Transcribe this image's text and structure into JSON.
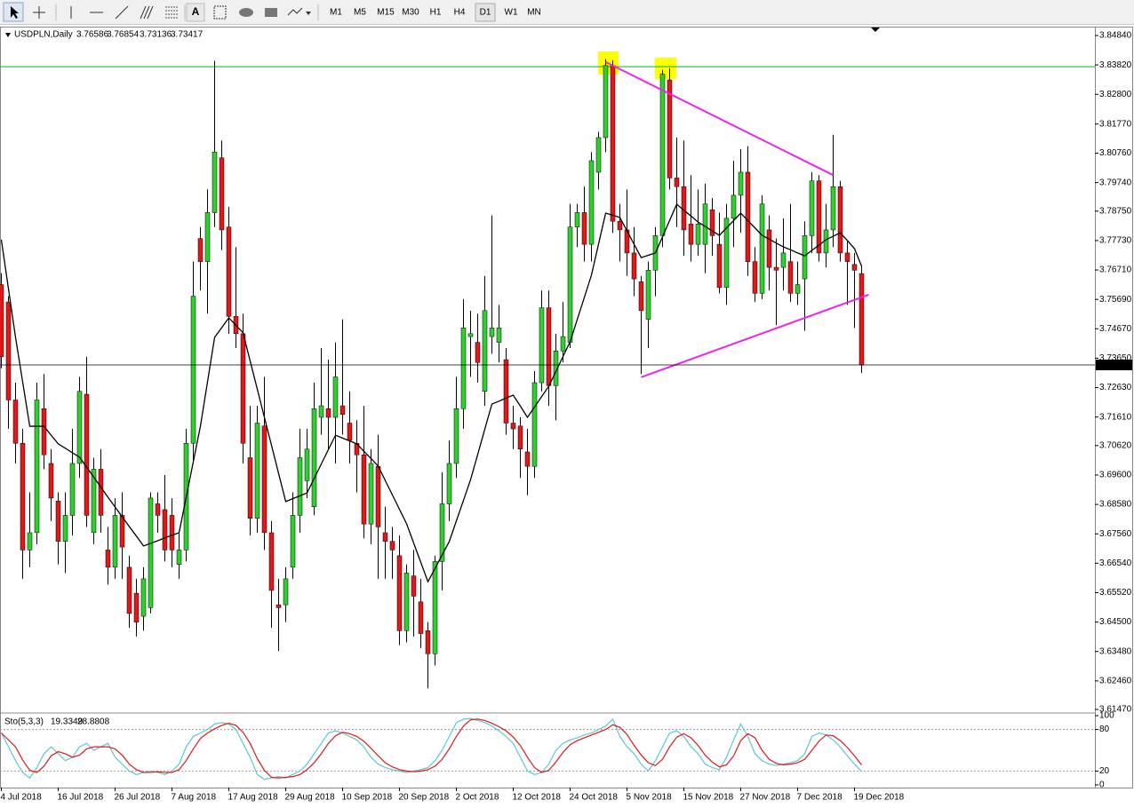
{
  "toolbar": {
    "text_tool": "A",
    "timeframes": [
      "M1",
      "M5",
      "M15",
      "M30",
      "H1",
      "H4",
      "D1",
      "W1",
      "MN"
    ],
    "active": 6
  },
  "chart_data": [
    {
      "type": "candlestick",
      "title": "USDPLN,Daily",
      "categories": [
        "4 Jul 2018",
        null,
        null,
        null,
        null,
        null,
        null,
        null,
        "16 Jul 2018",
        null,
        null,
        null,
        null,
        null,
        null,
        null,
        "26 Jul 2018",
        null,
        null,
        null,
        null,
        null,
        null,
        null,
        "7 Aug 2018",
        null,
        null,
        null,
        null,
        null,
        null,
        null,
        "17 Aug 2018",
        null,
        null,
        null,
        null,
        null,
        null,
        null,
        "29 Aug 2018",
        null,
        null,
        null,
        null,
        null,
        null,
        null,
        "10 Sep 2018",
        null,
        null,
        null,
        null,
        null,
        null,
        null,
        "20 Sep 2018",
        null,
        null,
        null,
        null,
        null,
        null,
        null,
        "2 Oct 2018",
        null,
        null,
        null,
        null,
        null,
        null,
        null,
        "12 Oct 2018",
        null,
        null,
        null,
        null,
        null,
        null,
        null,
        "24 Oct 2018",
        null,
        null,
        null,
        null,
        null,
        null,
        null,
        "5 Nov 2018",
        null,
        null,
        null,
        null,
        null,
        null,
        null,
        "15 Nov 2018",
        null,
        null,
        null,
        null,
        null,
        null,
        null,
        "27 Nov 2018",
        null,
        null,
        null,
        null,
        null,
        null,
        null,
        "7 Dec 2018",
        null,
        null,
        null,
        null,
        null,
        null,
        null,
        "19 Dec 2018",
        null
      ],
      "open": [
        3.762,
        3.756,
        3.722,
        3.707,
        3.67,
        3.676,
        3.719,
        3.7,
        3.687,
        3.673,
        3.682,
        3.7,
        3.724,
        3.676,
        3.698,
        3.67,
        3.664,
        3.682,
        3.664,
        3.655,
        3.647,
        3.65,
        3.686,
        3.684,
        3.682,
        3.665,
        3.67,
        3.707,
        3.778,
        3.77,
        3.787,
        3.806,
        3.782,
        3.751,
        3.745,
        3.702,
        3.681,
        3.713,
        3.676,
        3.651,
        3.651,
        3.664,
        3.682,
        3.694,
        3.685,
        3.716,
        3.719,
        3.716,
        3.72,
        3.714,
        3.707,
        3.703,
        3.679,
        3.699,
        3.676,
        3.673,
        3.668,
        3.642,
        3.661,
        3.652,
        3.642,
        3.634,
        3.666,
        3.686,
        3.7,
        3.719,
        3.744,
        3.742,
        3.725,
        3.744,
        3.742,
        3.736,
        3.714,
        3.713,
        3.704,
        3.699,
        3.728,
        3.754,
        3.727,
        3.739,
        3.742,
        3.782,
        3.787,
        3.776,
        3.801,
        3.813,
        3.838,
        3.784,
        3.781,
        3.773,
        3.763,
        3.75,
        3.767,
        3.779,
        3.833,
        3.799,
        3.796,
        3.783,
        3.776,
        3.776,
        3.788,
        3.776,
        3.761,
        3.785,
        3.793,
        3.801,
        3.77,
        3.759,
        3.781,
        3.768,
        3.768,
        3.77,
        3.759,
        3.764,
        3.779,
        3.798,
        3.773,
        3.781,
        3.796,
        3.773,
        3.769,
        3.76586
      ],
      "high": [
        3.766,
        3.758,
        3.728,
        3.712,
        3.69,
        3.728,
        3.731,
        3.705,
        3.69,
        3.69,
        3.712,
        3.73,
        3.737,
        3.702,
        3.705,
        3.678,
        3.688,
        3.69,
        3.668,
        3.66,
        3.664,
        3.69,
        3.69,
        3.696,
        3.688,
        3.676,
        3.712,
        3.77,
        3.782,
        3.795,
        3.8396,
        3.812,
        3.789,
        3.775,
        3.752,
        3.72,
        3.72,
        3.73,
        3.68,
        3.66,
        3.664,
        3.69,
        3.712,
        3.712,
        3.728,
        3.74,
        3.736,
        3.742,
        3.75,
        3.725,
        3.715,
        3.72,
        3.705,
        3.71,
        3.685,
        3.678,
        3.675,
        3.665,
        3.67,
        3.66,
        3.645,
        3.668,
        3.697,
        3.708,
        3.73,
        3.757,
        3.753,
        3.752,
        3.765,
        3.786,
        3.755,
        3.74,
        3.72,
        3.716,
        3.712,
        3.732,
        3.76,
        3.76,
        3.745,
        3.756,
        3.79,
        3.79,
        3.796,
        3.808,
        3.815,
        3.8402,
        3.8398,
        3.79,
        3.795,
        3.782,
        3.765,
        3.77,
        3.782,
        3.8365,
        3.837,
        3.813,
        3.812,
        3.8,
        3.795,
        3.797,
        3.792,
        3.787,
        3.79,
        3.805,
        3.809,
        3.81,
        3.775,
        3.793,
        3.786,
        3.778,
        3.785,
        3.79,
        3.77,
        3.784,
        3.801,
        3.8,
        3.79,
        3.814,
        3.798,
        3.777,
        3.773,
        3.76854
      ],
      "low": [
        3.733,
        3.712,
        3.7,
        3.66,
        3.664,
        3.672,
        3.698,
        3.68,
        3.665,
        3.662,
        3.675,
        3.695,
        3.678,
        3.672,
        3.676,
        3.658,
        3.66,
        3.66,
        3.643,
        3.64,
        3.642,
        3.648,
        3.676,
        3.666,
        3.664,
        3.66,
        3.666,
        3.7,
        3.76,
        3.752,
        3.782,
        3.774,
        3.745,
        3.74,
        3.7,
        3.675,
        3.676,
        3.67,
        3.643,
        3.635,
        3.645,
        3.66,
        3.676,
        3.688,
        3.682,
        3.71,
        3.705,
        3.7,
        3.71,
        3.7,
        3.69,
        3.674,
        3.672,
        3.66,
        3.66,
        3.66,
        3.637,
        3.638,
        3.64,
        3.636,
        3.622,
        3.63,
        3.656,
        3.68,
        3.695,
        3.712,
        3.73,
        3.728,
        3.72,
        3.738,
        3.735,
        3.71,
        3.705,
        3.695,
        3.689,
        3.695,
        3.725,
        3.72,
        3.715,
        3.735,
        3.74,
        3.775,
        3.77,
        3.77,
        3.795,
        3.808,
        3.78,
        3.77,
        3.765,
        3.758,
        3.731,
        3.74,
        3.758,
        3.775,
        3.795,
        3.782,
        3.772,
        3.77,
        3.772,
        3.766,
        3.772,
        3.759,
        3.755,
        3.775,
        3.78,
        3.765,
        3.756,
        3.757,
        3.76,
        3.748,
        3.76,
        3.756,
        3.755,
        3.746,
        3.773,
        3.77,
        3.768,
        3.775,
        3.77,
        3.755,
        3.747,
        3.73136
      ],
      "close": [
        3.737,
        3.722,
        3.707,
        3.67,
        3.676,
        3.722,
        3.703,
        3.688,
        3.673,
        3.682,
        3.7,
        3.725,
        3.682,
        3.698,
        3.682,
        3.664,
        3.682,
        3.671,
        3.648,
        3.645,
        3.66,
        3.688,
        3.682,
        3.67,
        3.67,
        3.67,
        3.707,
        3.758,
        3.77,
        3.787,
        3.808,
        3.781,
        3.751,
        3.745,
        3.707,
        3.681,
        3.714,
        3.676,
        3.656,
        3.65,
        3.66,
        3.682,
        3.702,
        3.705,
        3.719,
        3.72,
        3.716,
        3.73,
        3.717,
        3.708,
        3.703,
        3.679,
        3.7,
        3.678,
        3.673,
        3.67,
        3.642,
        3.662,
        3.654,
        3.641,
        3.634,
        3.666,
        3.686,
        3.7,
        3.719,
        3.747,
        3.745,
        3.735,
        3.753,
        3.747,
        3.747,
        3.714,
        3.712,
        3.705,
        3.699,
        3.728,
        3.754,
        3.727,
        3.739,
        3.744,
        3.782,
        3.787,
        3.776,
        3.805,
        3.813,
        3.838,
        3.784,
        3.781,
        3.773,
        3.764,
        3.753,
        3.767,
        3.779,
        3.835,
        3.799,
        3.796,
        3.781,
        3.776,
        3.783,
        3.79,
        3.779,
        3.761,
        3.785,
        3.793,
        3.801,
        3.77,
        3.759,
        3.79,
        3.768,
        3.767,
        3.773,
        3.759,
        3.762,
        3.779,
        3.798,
        3.773,
        3.781,
        3.796,
        3.773,
        3.77,
        3.767,
        3.73417
      ],
      "up_color": "#2fcf2f",
      "down_color": "#e01818",
      "ma": {
        "color": "#000000",
        "values": [
          3.7776,
          3.7606,
          3.7437,
          3.7283,
          3.7129,
          3.7129,
          3.7129,
          3.7098,
          3.7068,
          3.7053,
          3.7037,
          3.7022,
          3.6987,
          3.6953,
          3.6918,
          3.6883,
          3.6849,
          3.6815,
          3.6781,
          3.6748,
          3.6714,
          3.6723,
          3.6732,
          3.6742,
          3.6751,
          3.676,
          3.6883,
          3.7006,
          3.7129,
          3.7283,
          3.7437,
          3.7471,
          3.7505,
          3.7479,
          3.7453,
          3.7355,
          3.7258,
          3.716,
          3.7063,
          3.6965,
          3.6868,
          3.6878,
          3.6888,
          3.6898,
          3.6948,
          3.6998,
          3.7048,
          3.7098,
          3.7088,
          3.7078,
          3.7068,
          3.7042,
          3.7017,
          3.6991,
          3.6941,
          3.6891,
          3.6841,
          3.6791,
          3.6724,
          3.6657,
          3.659,
          3.6636,
          3.6683,
          3.6729,
          3.6801,
          3.6872,
          3.6944,
          3.7031,
          3.7119,
          3.7206,
          3.7216,
          3.7227,
          3.7237,
          3.7199,
          3.716,
          3.7196,
          3.7232,
          3.7268,
          3.7319,
          3.7371,
          3.7422,
          3.7499,
          3.7576,
          3.7653,
          3.7761,
          3.7868,
          3.7861,
          3.7853,
          3.7807,
          3.776,
          3.7714,
          3.7722,
          3.773,
          3.7786,
          3.7843,
          3.7899,
          3.7878,
          3.7858,
          3.7837,
          3.7822,
          3.7806,
          3.7791,
          3.7817,
          3.7842,
          3.7868,
          3.7842,
          3.7817,
          3.7791,
          3.7778,
          3.7764,
          3.7751,
          3.7741,
          3.773,
          3.772,
          3.7739,
          3.7757,
          3.7776,
          3.7788,
          3.78,
          3.7773,
          3.7745,
          3.7684
        ]
      },
      "hline": {
        "color": "#22bb22",
        "value": 3.8376
      },
      "trendlines": [
        {
          "color": "#ee22ee",
          "x": [
            85,
            117
          ],
          "y": [
            3.8392,
            3.8
          ]
        },
        {
          "color": "#ee22ee",
          "x": [
            90,
            122
          ],
          "y": [
            3.7299,
            3.7585
          ]
        }
      ],
      "ylim": [
        3.61378,
        3.85117
      ],
      "yticks": [
        {
          "value": 3.8484,
          "label": "3.84840"
        },
        {
          "value": 3.8382,
          "label": "3.83820"
        },
        {
          "value": 3.828,
          "label": "3.82800"
        },
        {
          "value": 3.8177,
          "label": "3.81770"
        },
        {
          "value": 3.8076,
          "label": "3.80760"
        },
        {
          "value": 3.7974,
          "label": "3.79740"
        },
        {
          "value": 3.7875,
          "label": "3.78750"
        },
        {
          "value": 3.7773,
          "label": "3.77730"
        },
        {
          "value": 3.7671,
          "label": "3.76710"
        },
        {
          "value": 3.7569,
          "label": "3.75690"
        },
        {
          "value": 3.7467,
          "label": "3.74670"
        },
        {
          "value": 3.7365,
          "label": "3.73650"
        },
        {
          "value": 3.7263,
          "label": "3.72630"
        },
        {
          "value": 3.7161,
          "label": "3.71610"
        },
        {
          "value": 3.7062,
          "label": "3.70620"
        },
        {
          "value": 3.696,
          "label": "3.69600"
        },
        {
          "value": 3.6858,
          "label": "3.68580"
        },
        {
          "value": 3.6756,
          "label": "3.67560"
        },
        {
          "value": 3.6654,
          "label": "3.66540"
        },
        {
          "value": 3.6552,
          "label": "3.65520"
        },
        {
          "value": 3.645,
          "label": "3.64500"
        },
        {
          "value": 3.6348,
          "label": "3.63480"
        },
        {
          "value": 3.6246,
          "label": "3.62460"
        },
        {
          "value": 3.6147,
          "label": "3.61470"
        }
      ]
    },
    {
      "type": "line",
      "title": "Sto(5,3,3)",
      "series": [
        {
          "color": "#5ec6d6",
          "values": [
            75,
            55,
            35,
            18,
            10,
            25,
            45,
            55,
            45,
            35,
            40,
            55,
            60,
            50,
            55,
            60,
            40,
            30,
            20,
            15,
            18,
            20,
            18,
            15,
            20,
            30,
            55,
            70,
            75,
            80,
            88,
            90,
            88,
            80,
            60,
            40,
            15,
            8,
            10,
            12,
            10,
            15,
            20,
            30,
            45,
            60,
            75,
            78,
            75,
            70,
            65,
            55,
            40,
            30,
            25,
            22,
            20,
            18,
            20,
            22,
            25,
            35,
            50,
            70,
            90,
            95,
            96,
            93,
            90,
            85,
            78,
            70,
            60,
            40,
            20,
            15,
            18,
            30,
            50,
            60,
            65,
            68,
            72,
            75,
            80,
            85,
            95,
            70,
            55,
            45,
            30,
            20,
            35,
            55,
            75,
            78,
            70,
            55,
            45,
            30,
            25,
            22,
            40,
            65,
            88,
            70,
            45,
            35,
            30,
            28,
            30,
            32,
            35,
            45,
            70,
            75,
            72,
            65,
            55,
            42,
            30,
            19.3349
          ]
        },
        {
          "color": "#e01818",
          "values": [
            75,
            65,
            55,
            36,
            21,
            18,
            27,
            42,
            48,
            45,
            40,
            43,
            52,
            55,
            55,
            55,
            52,
            43,
            30,
            22,
            18,
            18,
            19,
            18,
            18,
            22,
            35,
            52,
            67,
            75,
            81,
            86,
            89,
            86,
            76,
            60,
            38,
            21,
            11,
            10,
            11,
            12,
            15,
            22,
            32,
            45,
            60,
            71,
            76,
            74,
            70,
            63,
            53,
            42,
            32,
            26,
            22,
            20,
            19,
            20,
            22,
            27,
            37,
            52,
            70,
            85,
            94,
            95,
            93,
            89,
            84,
            78,
            69,
            57,
            40,
            25,
            18,
            21,
            33,
            47,
            58,
            64,
            68,
            72,
            76,
            80,
            87,
            83,
            73,
            57,
            43,
            32,
            28,
            37,
            55,
            69,
            74,
            68,
            57,
            43,
            33,
            26,
            29,
            42,
            64,
            74,
            68,
            50,
            37,
            31,
            29,
            30,
            32,
            37,
            50,
            63,
            72,
            71,
            64,
            54,
            42,
            28.8808
          ]
        }
      ],
      "ylim": [
        0,
        100
      ],
      "yticks": [
        0,
        20,
        80,
        100
      ],
      "levels": [
        20,
        80
      ]
    }
  ]
}
